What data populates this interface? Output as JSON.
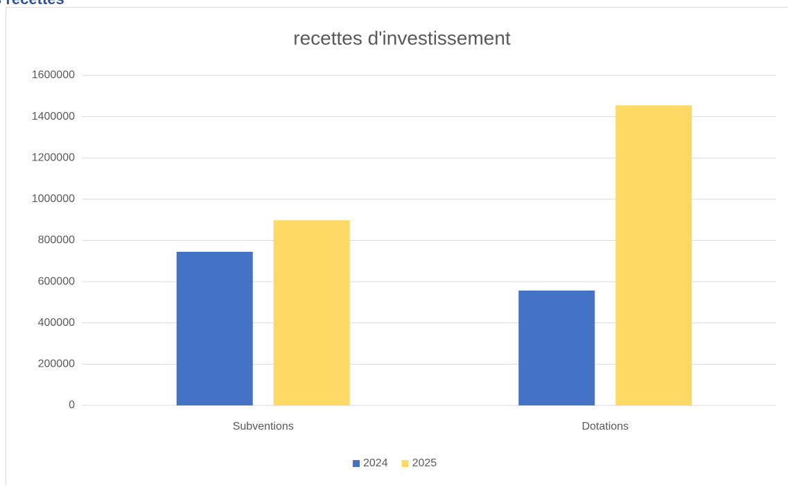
{
  "heading": "s recettes",
  "chart_data": {
    "type": "bar",
    "title": "recettes d'investissement",
    "categories": [
      "Subventions",
      "Dotations"
    ],
    "series": [
      {
        "name": "2024",
        "color": "#4472c4",
        "values": [
          745000,
          557000
        ]
      },
      {
        "name": "2025",
        "color": "#ffd966",
        "values": [
          898000,
          1455000
        ]
      }
    ],
    "ylim": [
      0,
      1600000
    ],
    "yticks": [
      0,
      200000,
      400000,
      600000,
      800000,
      1000000,
      1200000,
      1400000,
      1600000
    ],
    "grid": true,
    "legend": "bottom"
  }
}
